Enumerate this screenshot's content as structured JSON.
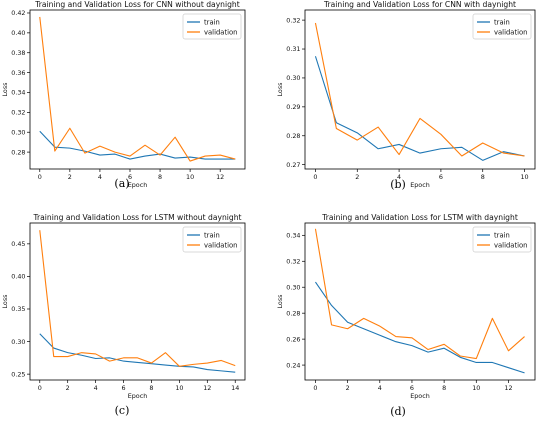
{
  "colors": {
    "train": "#1f77b4",
    "validation": "#ff7f0e"
  },
  "chart_data": [
    {
      "type": "line",
      "title": "Training and Validation Loss for CNN without daynight",
      "xlabel": "Epoch",
      "ylabel": "Loss",
      "caption": "(a)",
      "x": [
        0,
        1,
        2,
        3,
        4,
        5,
        6,
        7,
        8,
        9,
        10,
        11,
        12,
        13
      ],
      "xlim": [
        -0.65,
        13.65
      ],
      "ylim": [
        0.263,
        0.423
      ],
      "xticks": [
        0,
        2,
        4,
        6,
        8,
        10,
        12
      ],
      "yticks": [
        0.28,
        0.3,
        0.32,
        0.34,
        0.36,
        0.38,
        0.4,
        0.42
      ],
      "ydecimals": 2,
      "grid": false,
      "legend": "top-right",
      "series": [
        {
          "name": "train",
          "values": [
            0.301,
            0.285,
            0.284,
            0.281,
            0.277,
            0.278,
            0.273,
            0.276,
            0.278,
            0.274,
            0.275,
            0.273,
            0.273,
            0.273
          ]
        },
        {
          "name": "validation",
          "values": [
            0.416,
            0.281,
            0.304,
            0.279,
            0.286,
            0.28,
            0.276,
            0.287,
            0.277,
            0.295,
            0.271,
            0.276,
            0.277,
            0.273
          ]
        }
      ]
    },
    {
      "type": "line",
      "title": "Training and Validation Loss for CNN with daynight",
      "xlabel": "Epoch",
      "ylabel": "Loss",
      "caption": "(b)",
      "x": [
        0,
        1,
        2,
        3,
        4,
        5,
        6,
        7,
        8,
        9,
        10
      ],
      "xlim": [
        -0.5,
        10.5
      ],
      "ylim": [
        0.2685,
        0.3235
      ],
      "xticks": [
        0,
        2,
        4,
        6,
        8,
        10
      ],
      "yticks": [
        0.27,
        0.28,
        0.29,
        0.3,
        0.31,
        0.32
      ],
      "ydecimals": 2,
      "grid": false,
      "legend": "top-right",
      "series": [
        {
          "name": "train",
          "values": [
            0.3075,
            0.2845,
            0.281,
            0.2755,
            0.277,
            0.274,
            0.2755,
            0.276,
            0.2715,
            0.2745,
            0.273
          ]
        },
        {
          "name": "validation",
          "values": [
            0.319,
            0.2825,
            0.2785,
            0.283,
            0.2735,
            0.286,
            0.2805,
            0.273,
            0.2775,
            0.274,
            0.273
          ]
        }
      ]
    },
    {
      "type": "line",
      "title": "Training and Validation Loss for LSTM without daynight",
      "xlabel": "Epoch",
      "ylabel": "Loss",
      "caption": "(c)",
      "x": [
        0,
        1,
        2,
        3,
        4,
        5,
        6,
        7,
        8,
        9,
        10,
        11,
        12,
        13,
        14
      ],
      "xlim": [
        -0.7,
        14.7
      ],
      "ylim": [
        0.241,
        0.482
      ],
      "xticks": [
        0,
        2,
        4,
        6,
        8,
        10,
        12,
        14
      ],
      "yticks": [
        0.25,
        0.3,
        0.35,
        0.4,
        0.45
      ],
      "ydecimals": 2,
      "grid": false,
      "legend": "top-right",
      "series": [
        {
          "name": "train",
          "values": [
            0.312,
            0.29,
            0.283,
            0.279,
            0.274,
            0.275,
            0.27,
            0.268,
            0.266,
            0.264,
            0.262,
            0.261,
            0.257,
            0.255,
            0.253
          ]
        },
        {
          "name": "validation",
          "values": [
            0.471,
            0.277,
            0.277,
            0.283,
            0.281,
            0.27,
            0.275,
            0.275,
            0.267,
            0.283,
            0.262,
            0.265,
            0.267,
            0.271,
            0.263
          ]
        }
      ]
    },
    {
      "type": "line",
      "title": "Training and Validation Loss for LSTM with daynight",
      "xlabel": "Epoch",
      "ylabel": "Loss",
      "caption": "(d)",
      "x": [
        0,
        1,
        2,
        3,
        4,
        5,
        6,
        7,
        8,
        9,
        10,
        11,
        12,
        13
      ],
      "xlim": [
        -0.65,
        13.65
      ],
      "ylim": [
        0.2285,
        0.3495
      ],
      "xticks": [
        0,
        2,
        4,
        6,
        8,
        10,
        12
      ],
      "yticks": [
        0.24,
        0.26,
        0.28,
        0.3,
        0.32,
        0.34
      ],
      "ydecimals": 2,
      "grid": false,
      "legend": "top-right",
      "series": [
        {
          "name": "train",
          "values": [
            0.304,
            0.286,
            0.273,
            0.268,
            0.263,
            0.258,
            0.255,
            0.25,
            0.253,
            0.246,
            0.242,
            0.242,
            0.238,
            0.234
          ]
        },
        {
          "name": "validation",
          "values": [
            0.345,
            0.271,
            0.268,
            0.276,
            0.27,
            0.262,
            0.261,
            0.252,
            0.256,
            0.247,
            0.245,
            0.276,
            0.251,
            0.262
          ]
        }
      ]
    }
  ]
}
